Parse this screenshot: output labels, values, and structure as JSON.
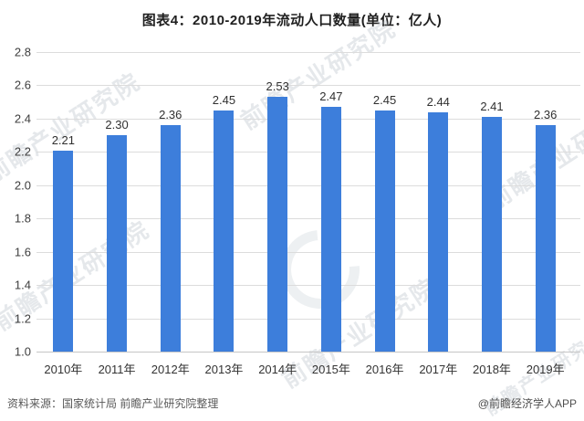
{
  "page": {
    "footer": {
      "source": "资料来源：国家统计局 前瞻产业研究院整理",
      "credit": "@前瞻经济学人APP"
    },
    "watermark": "前瞻产业研究院"
  },
  "chart_data": {
    "type": "bar",
    "title": "图表4：2010-2019年流动人口数量(单位：亿人)",
    "unit": "亿人",
    "categories": [
      "2010年",
      "2011年",
      "2012年",
      "2013年",
      "2014年",
      "2015年",
      "2016年",
      "2017年",
      "2018年",
      "2019年"
    ],
    "values": [
      2.21,
      2.3,
      2.36,
      2.45,
      2.53,
      2.47,
      2.45,
      2.44,
      2.41,
      2.36
    ],
    "xlabel": "",
    "ylabel": "",
    "ylim": [
      1.0,
      2.8
    ],
    "yticks": [
      2.8,
      2.6,
      2.4,
      2.2,
      2.0,
      1.8,
      1.6,
      1.4,
      1.2,
      1.0
    ],
    "grid": "horizontal",
    "legend": "none",
    "bar_color": "#3D7EDB",
    "value_label_decimals": 2
  }
}
